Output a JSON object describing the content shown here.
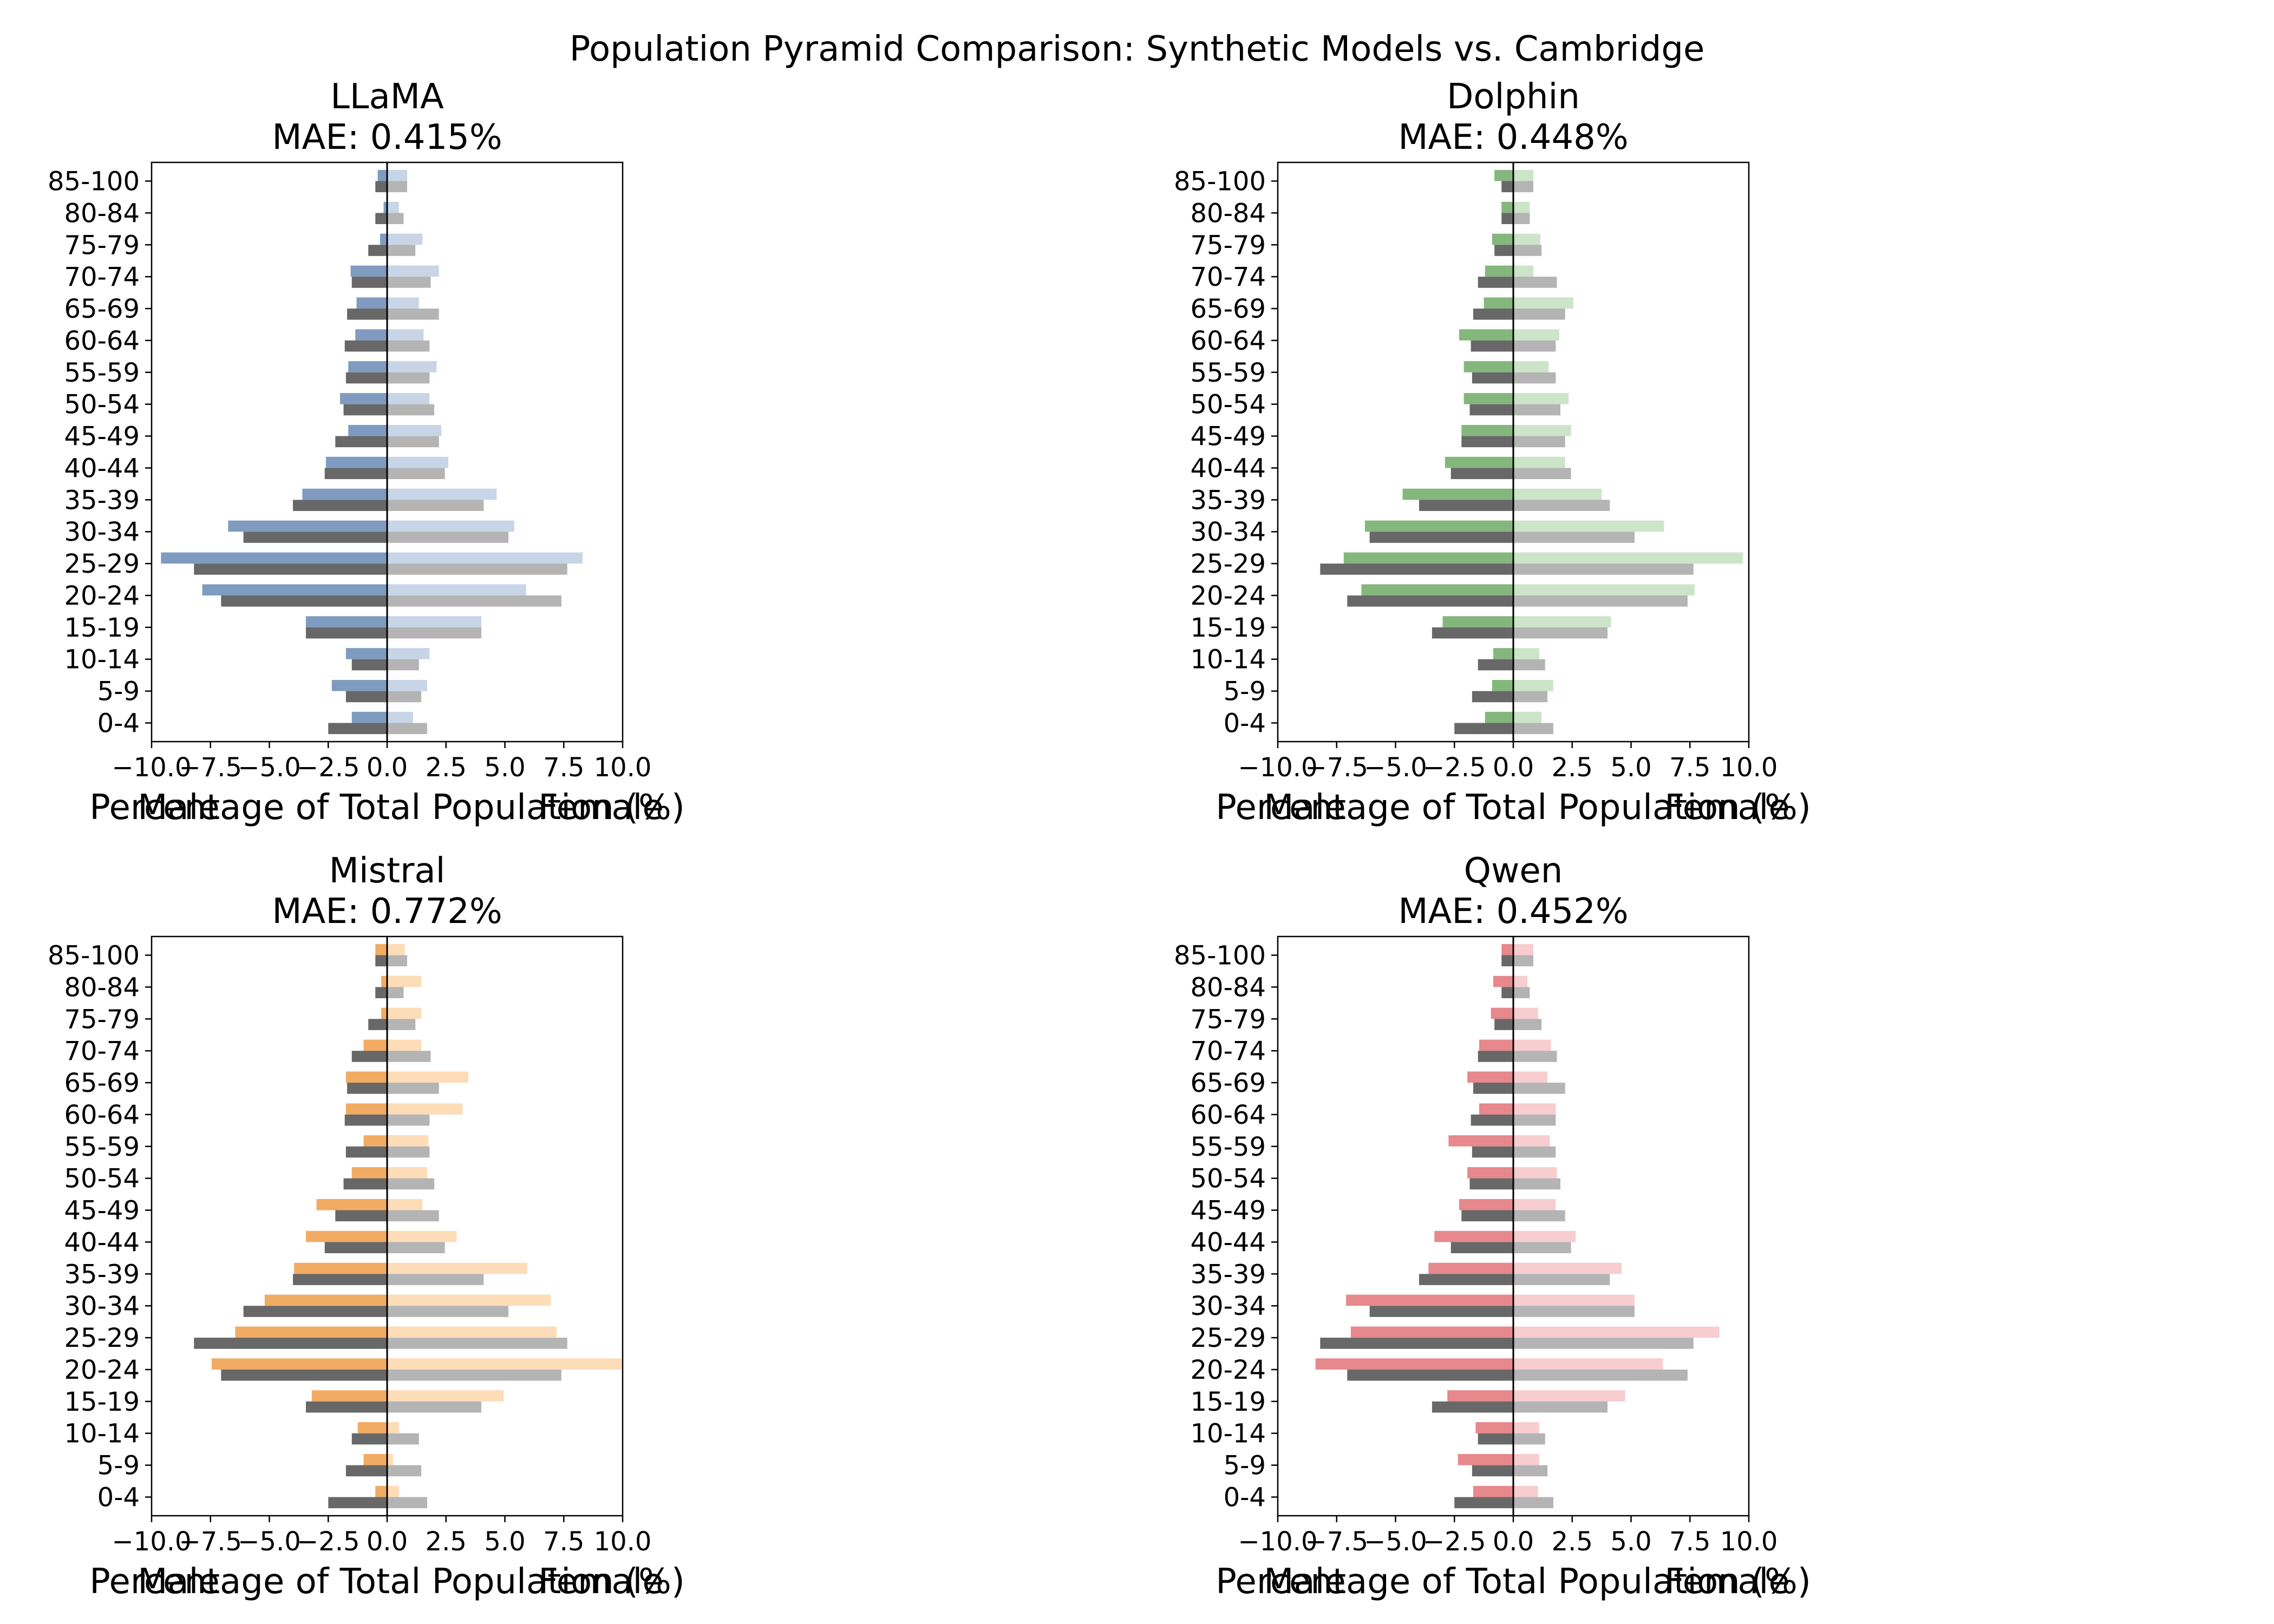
{
  "title": "Population Pyramid Comparison: Synthetic Models vs. Cambridge",
  "colors": {
    "reference_male": "#686868",
    "reference_female": "#b4b4b4",
    "axis": "#000000"
  },
  "chart_data": [
    {
      "type": "bar",
      "model": "LLaMA",
      "title": "LLaMA",
      "subtitle": "MAE: 0.415%",
      "xlabel": "Percentage of Total Population (%)",
      "left_label": "Male",
      "right_label": "Female",
      "xlim": [
        -10,
        10
      ],
      "xticks": [
        -10,
        -7.5,
        -5,
        -2.5,
        0,
        2.5,
        5,
        7.5,
        10
      ],
      "xtick_labels": [
        "−10.0",
        "−7.5",
        "−5.0",
        "−2.5",
        "0.0",
        "2.5",
        "5.0",
        "7.5",
        "10.0"
      ],
      "categories": [
        "0-4",
        "5-9",
        "10-14",
        "15-19",
        "20-24",
        "25-29",
        "30-34",
        "35-39",
        "40-44",
        "45-49",
        "50-54",
        "55-59",
        "60-64",
        "65-69",
        "70-74",
        "75-79",
        "80-84",
        "85-100"
      ],
      "model_colors": {
        "male": "#7f9cc0",
        "female": "#c8d5e6"
      },
      "model_male": [
        1.5,
        2.35,
        1.75,
        3.45,
        7.85,
        9.6,
        6.75,
        3.6,
        2.6,
        1.65,
        2.0,
        1.65,
        1.35,
        1.3,
        1.55,
        0.3,
        0.15,
        0.4
      ],
      "model_female": [
        1.1,
        1.7,
        1.8,
        4.0,
        5.9,
        8.3,
        5.4,
        4.65,
        2.6,
        2.3,
        1.8,
        2.1,
        1.55,
        1.35,
        2.2,
        1.5,
        0.5,
        0.85
      ],
      "reference_male": [
        2.5,
        1.75,
        1.5,
        3.45,
        7.05,
        8.2,
        6.1,
        4.0,
        2.65,
        2.2,
        1.85,
        1.75,
        1.8,
        1.7,
        1.5,
        0.8,
        0.5,
        0.5
      ],
      "reference_female": [
        1.7,
        1.45,
        1.35,
        4.0,
        7.4,
        7.65,
        5.15,
        4.1,
        2.45,
        2.2,
        2.0,
        1.8,
        1.8,
        2.2,
        1.85,
        1.2,
        0.7,
        0.85
      ]
    },
    {
      "type": "bar",
      "model": "Dolphin",
      "title": "Dolphin",
      "subtitle": "MAE: 0.448%",
      "xlabel": "Percentage of Total Population (%)",
      "left_label": "Male",
      "right_label": "Female",
      "xlim": [
        -10,
        10
      ],
      "xticks": [
        -10,
        -7.5,
        -5,
        -2.5,
        0,
        2.5,
        5,
        7.5,
        10
      ],
      "xtick_labels": [
        "−10.0",
        "−7.5",
        "−5.0",
        "−2.5",
        "0.0",
        "2.5",
        "5.0",
        "7.5",
        "10.0"
      ],
      "categories": [
        "0-4",
        "5-9",
        "10-14",
        "15-19",
        "20-24",
        "25-29",
        "30-34",
        "35-39",
        "40-44",
        "45-49",
        "50-54",
        "55-59",
        "60-64",
        "65-69",
        "70-74",
        "75-79",
        "80-84",
        "85-100"
      ],
      "model_colors": {
        "male": "#84b77c",
        "female": "#cce5c8"
      },
      "model_male": [
        1.2,
        0.9,
        0.85,
        3.0,
        6.45,
        7.2,
        6.3,
        4.7,
        2.9,
        2.2,
        2.1,
        2.1,
        2.3,
        1.25,
        1.2,
        0.9,
        0.5,
        0.8
      ],
      "model_female": [
        1.2,
        1.7,
        1.1,
        4.15,
        7.7,
        9.75,
        6.4,
        3.75,
        2.2,
        2.45,
        2.35,
        1.5,
        1.95,
        2.55,
        0.85,
        1.15,
        0.7,
        0.85
      ],
      "reference_male": [
        2.5,
        1.75,
        1.5,
        3.45,
        7.05,
        8.2,
        6.1,
        4.0,
        2.65,
        2.2,
        1.85,
        1.75,
        1.8,
        1.7,
        1.5,
        0.8,
        0.5,
        0.5
      ],
      "reference_female": [
        1.7,
        1.45,
        1.35,
        4.0,
        7.4,
        7.65,
        5.15,
        4.1,
        2.45,
        2.2,
        2.0,
        1.8,
        1.8,
        2.2,
        1.85,
        1.2,
        0.7,
        0.85
      ]
    },
    {
      "type": "bar",
      "model": "Mistral",
      "title": "Mistral",
      "subtitle": "MAE: 0.772%",
      "xlabel": "Percentage of Total Population (%)",
      "left_label": "Male",
      "right_label": "Female",
      "xlim": [
        -10,
        10
      ],
      "xticks": [
        -10,
        -7.5,
        -5,
        -2.5,
        0,
        2.5,
        5,
        7.5,
        10
      ],
      "xtick_labels": [
        "−10.0",
        "−7.5",
        "−5.0",
        "−2.5",
        "0.0",
        "2.5",
        "5.0",
        "7.5",
        "10.0"
      ],
      "categories": [
        "0-4",
        "5-9",
        "10-14",
        "15-19",
        "20-24",
        "25-29",
        "30-34",
        "35-39",
        "40-44",
        "45-49",
        "50-54",
        "55-59",
        "60-64",
        "65-69",
        "70-74",
        "75-79",
        "80-84",
        "85-100"
      ],
      "model_colors": {
        "male": "#f2ab62",
        "female": "#fddcb8"
      },
      "model_male": [
        0.5,
        1.0,
        1.25,
        3.2,
        7.45,
        6.45,
        5.2,
        3.95,
        3.45,
        3.0,
        1.5,
        1.0,
        1.75,
        1.75,
        1.0,
        0.25,
        0.25,
        0.5
      ],
      "model_female": [
        0.5,
        0.25,
        0.5,
        4.95,
        9.95,
        7.2,
        6.95,
        5.95,
        2.95,
        1.5,
        1.7,
        1.75,
        3.2,
        3.45,
        1.45,
        1.45,
        1.45,
        0.75
      ],
      "reference_male": [
        2.5,
        1.75,
        1.5,
        3.45,
        7.05,
        8.2,
        6.1,
        4.0,
        2.65,
        2.2,
        1.85,
        1.75,
        1.8,
        1.7,
        1.5,
        0.8,
        0.5,
        0.5
      ],
      "reference_female": [
        1.7,
        1.45,
        1.35,
        4.0,
        7.4,
        7.65,
        5.15,
        4.1,
        2.45,
        2.2,
        2.0,
        1.8,
        1.8,
        2.2,
        1.85,
        1.2,
        0.7,
        0.85
      ]
    },
    {
      "type": "bar",
      "model": "Qwen",
      "title": "Qwen",
      "subtitle": "MAE: 0.452%",
      "xlabel": "Percentage of Total Population (%)",
      "left_label": "Male",
      "right_label": "Female",
      "xlim": [
        -10,
        10
      ],
      "xticks": [
        -10,
        -7.5,
        -5,
        -2.5,
        0,
        2.5,
        5,
        7.5,
        10
      ],
      "xtick_labels": [
        "−10.0",
        "−7.5",
        "−5.0",
        "−2.5",
        "0.0",
        "2.5",
        "5.0",
        "7.5",
        "10.0"
      ],
      "categories": [
        "0-4",
        "5-9",
        "10-14",
        "15-19",
        "20-24",
        "25-29",
        "30-34",
        "35-39",
        "40-44",
        "45-49",
        "50-54",
        "55-59",
        "60-64",
        "65-69",
        "70-74",
        "75-79",
        "80-84",
        "85-100"
      ],
      "model_colors": {
        "male": "#e6888c",
        "female": "#f7cdcf"
      },
      "model_male": [
        1.7,
        2.35,
        1.6,
        2.8,
        8.4,
        6.9,
        7.1,
        3.6,
        3.35,
        2.3,
        1.95,
        2.75,
        1.45,
        1.95,
        1.45,
        0.95,
        0.85,
        0.5
      ],
      "model_female": [
        1.05,
        1.1,
        1.1,
        4.75,
        6.35,
        8.75,
        5.15,
        4.6,
        2.65,
        1.8,
        1.85,
        1.55,
        1.8,
        1.45,
        1.6,
        1.05,
        0.6,
        0.85
      ],
      "reference_male": [
        2.5,
        1.75,
        1.5,
        3.45,
        7.05,
        8.2,
        6.1,
        4.0,
        2.65,
        2.2,
        1.85,
        1.75,
        1.8,
        1.7,
        1.5,
        0.8,
        0.5,
        0.5
      ],
      "reference_female": [
        1.7,
        1.45,
        1.35,
        4.0,
        7.4,
        7.65,
        5.15,
        4.1,
        2.45,
        2.2,
        2.0,
        1.8,
        1.8,
        2.2,
        1.85,
        1.2,
        0.7,
        0.85
      ]
    }
  ]
}
